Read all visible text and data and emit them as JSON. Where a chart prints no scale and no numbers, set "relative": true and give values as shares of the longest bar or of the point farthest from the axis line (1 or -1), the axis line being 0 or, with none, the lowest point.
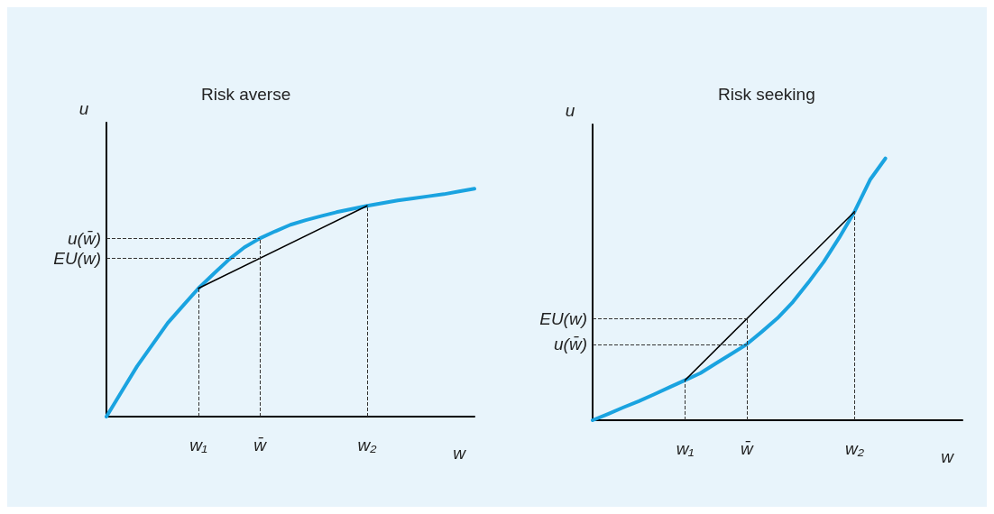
{
  "chart_data": [
    {
      "type": "line",
      "title": "Risk averse",
      "xlabel": "w",
      "ylabel": "u",
      "relative": true,
      "grid": false,
      "tick_labels": "x",
      "marker": "none",
      "line_style": "solid",
      "categories": [
        null,
        null,
        null,
        null,
        null,
        null,
        "w₁",
        null,
        null,
        null,
        "w̄",
        null,
        null,
        null,
        null,
        null,
        null,
        "w₂",
        null,
        null,
        null,
        null,
        null,
        null,
        null
      ],
      "series": [
        {
          "color": "#1aa3e0",
          "values": [
            0,
            0.111,
            0.221,
            0.316,
            0.411,
            0.487,
            0.563,
            0.627,
            0.69,
            0.743,
            0.782,
            0.813,
            0.842,
            0.862,
            0.88,
            0.897,
            0.911,
            0.925,
            0.937,
            0.949,
            0.958,
            0.967,
            0.976,
            0.988,
            1.0
          ]
        },
        {
          "color": "#000000",
          "values": [
            null,
            null,
            null,
            null,
            null,
            null,
            0.563,
            null,
            null,
            null,
            null,
            null,
            null,
            null,
            null,
            null,
            null,
            0.925,
            null,
            null,
            null,
            null,
            null,
            null,
            null
          ]
        }
      ],
      "ref_lines": [
        {
          "axis": "x",
          "value": "w₁",
          "line_style": "dashed",
          "color": "#333333"
        },
        {
          "axis": "x",
          "value": "w̄",
          "line_style": "dashed",
          "color": "#333333"
        },
        {
          "axis": "x",
          "value": "w₂",
          "line_style": "dashed",
          "color": "#333333"
        },
        {
          "axis": "y",
          "value": 0.782,
          "label": "u(w̄)",
          "line_style": "dashed",
          "color": "#333333"
        },
        {
          "axis": "y",
          "value": 0.695,
          "label": "EU(w)",
          "line_style": "dashed",
          "color": "#333333"
        }
      ]
    },
    {
      "type": "line",
      "title": "Risk seeking",
      "xlabel": "w",
      "ylabel": "u",
      "relative": true,
      "grid": false,
      "tick_labels": "x",
      "marker": "none",
      "line_style": "solid",
      "categories": [
        null,
        null,
        null,
        null,
        null,
        null,
        "w₁",
        null,
        null,
        null,
        "w̄",
        null,
        null,
        null,
        null,
        null,
        null,
        "w₂",
        null,
        null,
        null,
        null,
        null,
        null,
        null
      ],
      "series": [
        {
          "color": "#1aa3e0",
          "values": [
            0,
            0.024,
            0.049,
            0.073,
            0.099,
            0.126,
            0.153,
            0.18,
            0.217,
            0.253,
            0.29,
            0.339,
            0.39,
            0.452,
            0.526,
            0.605,
            0.697,
            0.797,
            0.918,
            1.0,
            null,
            null,
            null,
            null,
            null
          ]
        },
        {
          "color": "#000000",
          "values": [
            null,
            null,
            null,
            null,
            null,
            null,
            0.153,
            null,
            null,
            null,
            null,
            null,
            null,
            null,
            null,
            null,
            null,
            0.797,
            null,
            null,
            null,
            null,
            null,
            null,
            null
          ]
        }
      ],
      "ref_lines": [
        {
          "axis": "x",
          "value": "w₁",
          "line_style": "dashed",
          "color": "#333333"
        },
        {
          "axis": "x",
          "value": "w̄",
          "line_style": "dashed",
          "color": "#333333"
        },
        {
          "axis": "x",
          "value": "w₂",
          "line_style": "dashed",
          "color": "#333333"
        },
        {
          "axis": "y",
          "value": 0.387,
          "label": "EU(w)",
          "line_style": "dashed",
          "color": "#333333"
        },
        {
          "axis": "y",
          "value": 0.29,
          "label": "u(w̄)",
          "line_style": "dashed",
          "color": "#333333"
        }
      ]
    }
  ]
}
